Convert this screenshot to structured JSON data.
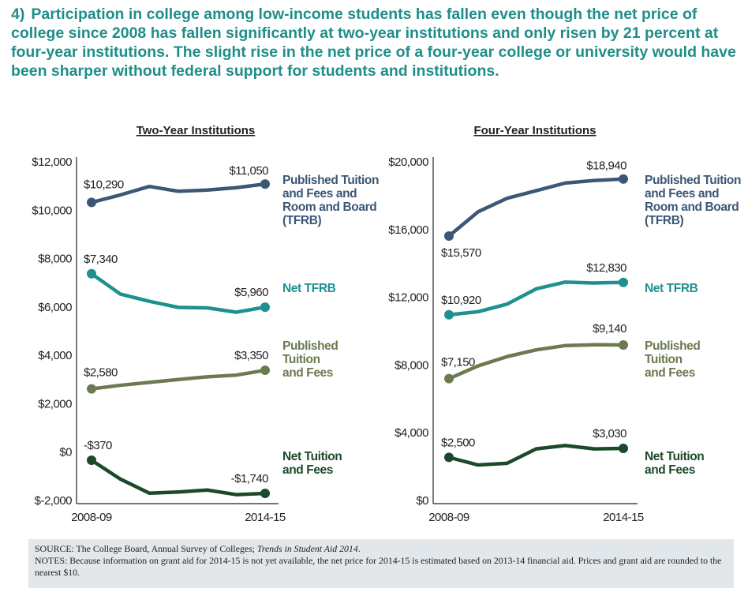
{
  "header": {
    "number": "4)",
    "title": "Participation in college among low-income students has fallen even though the net price of college since 2008 has fallen significantly at two-year institutions and only risen by 21 percent at four-year institutions. The slight rise in the net price of a four-year college or university would have been sharper without federal support for students and institutions."
  },
  "colors": {
    "title": "#1f8e8a",
    "tfrb": "#3b5775",
    "net_tfrb": "#1f9090",
    "published_tf": "#6b7a4f",
    "net_tf": "#1a4a2a"
  },
  "chart_data": [
    {
      "type": "line",
      "title": "Two-Year Institutions",
      "x_ticks": [
        "2008-09",
        "2014-15"
      ],
      "x": [
        "2008-09",
        "2009-10",
        "2010-11",
        "2011-12",
        "2012-13",
        "2013-14",
        "2014-15"
      ],
      "ylim": [
        -2000,
        12000
      ],
      "y_ticks": [
        "$-2,000",
        "$0",
        "$2,000",
        "$4,000",
        "$6,000",
        "$8,000",
        "$10,000",
        "$12,000"
      ],
      "grid": false,
      "series": [
        {
          "name": "Published Tuition and Fees and Room and Board (TFRB)",
          "color_key": "tfrb",
          "values": [
            10290,
            10600,
            10950,
            10750,
            10800,
            10900,
            11050
          ],
          "start_label": "$10,290",
          "end_label": "$11,050"
        },
        {
          "name": "Net TFRB",
          "color_key": "net_tfrb",
          "values": [
            7340,
            6500,
            6200,
            5950,
            5930,
            5750,
            5960
          ],
          "start_label": "$7,340",
          "end_label": "$5,960"
        },
        {
          "name": "Published Tuition and Fees",
          "color_key": "published_tf",
          "values": [
            2580,
            2730,
            2850,
            2970,
            3080,
            3150,
            3350
          ],
          "start_label": "$2,580",
          "end_label": "$3,350"
        },
        {
          "name": "Net Tuition and Fees",
          "color_key": "net_tf",
          "values": [
            -370,
            -1150,
            -1730,
            -1680,
            -1600,
            -1790,
            -1740
          ],
          "start_label": "-$370",
          "end_label": "-$1,740"
        }
      ]
    },
    {
      "type": "line",
      "title": "Four-Year Institutions",
      "x_ticks": [
        "2008-09",
        "2014-15"
      ],
      "x": [
        "2008-09",
        "2009-10",
        "2010-11",
        "2011-12",
        "2012-13",
        "2013-14",
        "2014-15"
      ],
      "ylim": [
        0,
        20000
      ],
      "y_ticks": [
        "$0",
        "$4,000",
        "$8,000",
        "$12,000",
        "$16,000",
        "$20,000"
      ],
      "grid": false,
      "series": [
        {
          "name": "Published Tuition and Fees and Room and Board (TFRB)",
          "color_key": "tfrb",
          "values": [
            15570,
            17000,
            17800,
            18250,
            18700,
            18850,
            18940
          ],
          "start_label": "$15,570",
          "end_label": "$18,940"
        },
        {
          "name": "Net TFRB",
          "color_key": "net_tfrb",
          "values": [
            10920,
            11100,
            11550,
            12450,
            12850,
            12800,
            12830
          ],
          "start_label": "$10,920",
          "end_label": "$12,830"
        },
        {
          "name": "Published Tuition and Fees",
          "color_key": "published_tf",
          "values": [
            7150,
            7900,
            8450,
            8850,
            9100,
            9150,
            9140
          ],
          "start_label": "$7,150",
          "end_label": "$9,140"
        },
        {
          "name": "Net Tuition and Fees",
          "color_key": "net_tf",
          "values": [
            2500,
            2050,
            2150,
            3000,
            3200,
            3000,
            3030
          ],
          "start_label": "$2,500",
          "end_label": "$3,030"
        }
      ]
    }
  ],
  "legend_lines": {
    "tfrb": [
      "Published Tuition",
      "and Fees and",
      "Room and Board",
      "(TFRB)"
    ],
    "net_tfrb": [
      "Net TFRB"
    ],
    "published_tf": [
      "Published",
      "Tuition",
      "and Fees"
    ],
    "net_tf": [
      "Net Tuition",
      "and Fees"
    ]
  },
  "footer": {
    "source_prefix": "SOURCE: The College Board, Annual Survey of Colleges; ",
    "source_italic": "Trends in Student Aid 2014",
    "source_suffix": ".",
    "notes": "NOTES: Because information on grant aid for 2014-15 is not yet available, the net price for 2014-15 is estimated based on 2013-14 financial aid. Prices and grant aid are rounded to the nearest $10."
  }
}
